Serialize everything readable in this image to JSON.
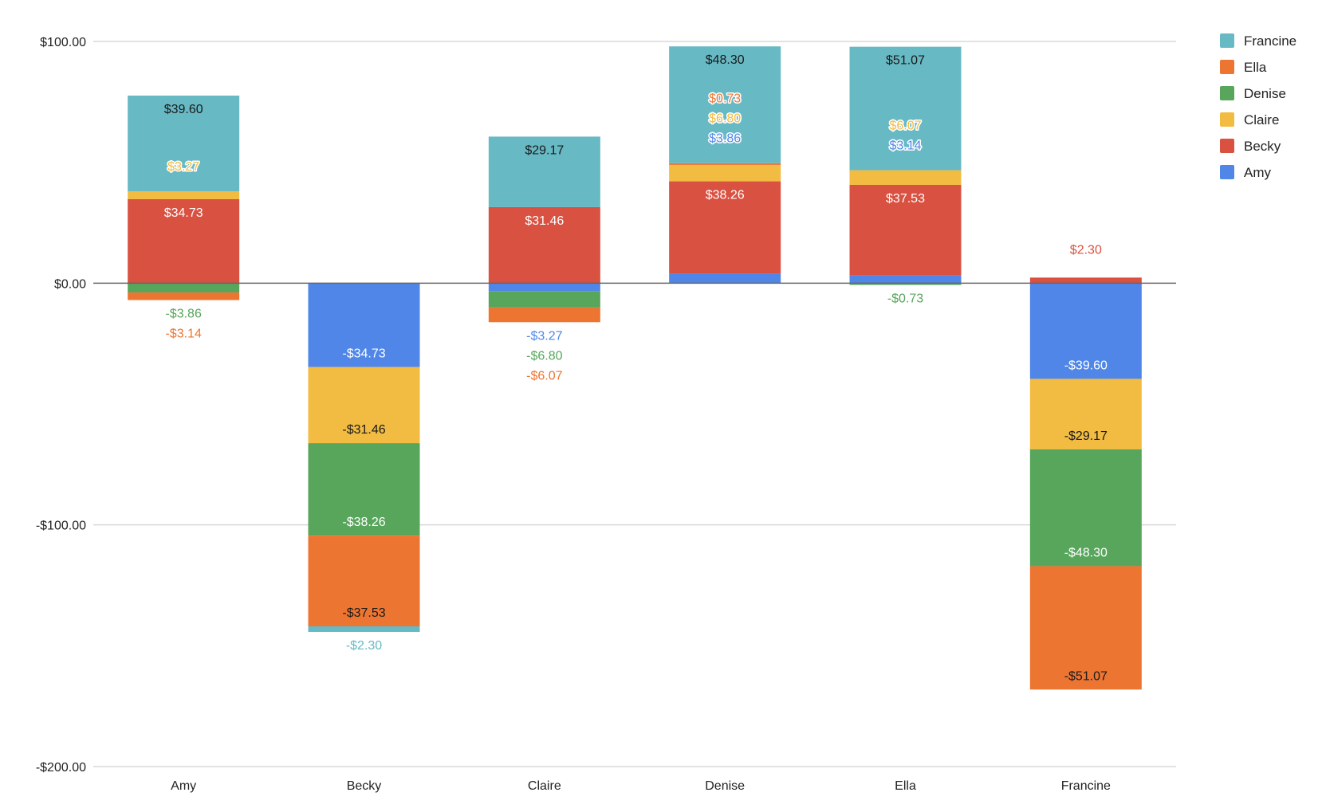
{
  "chart_data": {
    "type": "bar",
    "stacked": true,
    "title": "",
    "xlabel": "",
    "ylabel": "",
    "ylim": [
      -200,
      100
    ],
    "yticks": [
      100,
      0,
      -100,
      -200
    ],
    "ytick_labels": [
      "$100.00",
      "$0.00",
      "-$100.00",
      "-$200.00"
    ],
    "grid": true,
    "legend_position": "top-right",
    "categories": [
      "Amy",
      "Becky",
      "Claire",
      "Denise",
      "Ella",
      "Francine"
    ],
    "series": [
      {
        "name": "Amy",
        "color": "#4f86e8",
        "values": [
          0,
          -34.73,
          -3.27,
          3.86,
          3.14,
          -39.6
        ]
      },
      {
        "name": "Becky",
        "color": "#d95141",
        "values": [
          34.73,
          0,
          31.46,
          38.26,
          37.53,
          2.3
        ]
      },
      {
        "name": "Claire",
        "color": "#f2bb42",
        "values": [
          3.27,
          -31.46,
          0,
          6.8,
          6.07,
          -29.17
        ]
      },
      {
        "name": "Denise",
        "color": "#57a65b",
        "values": [
          -3.86,
          -38.26,
          -6.8,
          0,
          -0.73,
          -48.3
        ]
      },
      {
        "name": "Ella",
        "color": "#ed7532",
        "values": [
          -3.14,
          -37.53,
          -6.07,
          0.73,
          0,
          -51.07
        ]
      },
      {
        "name": "Francine",
        "color": "#67b9c4",
        "values": [
          39.6,
          -2.3,
          29.17,
          48.3,
          51.07,
          0
        ]
      }
    ],
    "legend_order": [
      "Francine",
      "Ella",
      "Denise",
      "Claire",
      "Becky",
      "Amy"
    ]
  }
}
